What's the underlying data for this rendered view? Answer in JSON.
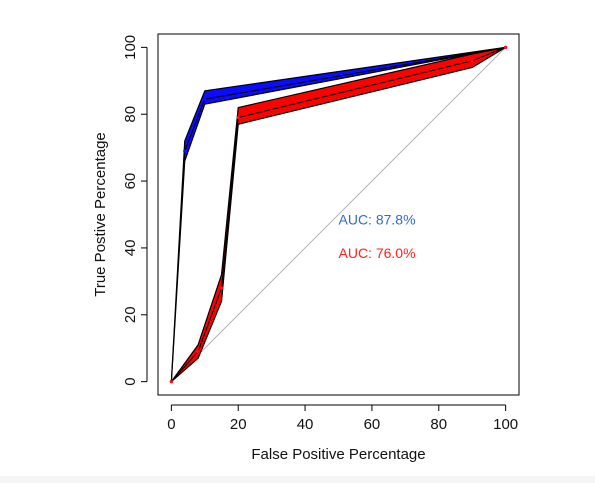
{
  "chart_data": {
    "type": "line",
    "title": "",
    "xlabel": "False Positive Percentage",
    "ylabel": "True Postive Percentage",
    "xlim": [
      -4,
      104
    ],
    "ylim": [
      -4,
      104
    ],
    "x_ticks": [
      0,
      20,
      40,
      60,
      80,
      100
    ],
    "y_ticks": [
      0,
      20,
      40,
      60,
      80,
      100
    ],
    "grid": false,
    "reference_line": {
      "from": [
        0,
        0
      ],
      "to": [
        100,
        100
      ],
      "color": "#b3b3b3"
    },
    "series": [
      {
        "color": "#1010ff",
        "fill_color": "#0b0bff",
        "points": [
          {
            "x": 0,
            "y": 0,
            "lower": 0,
            "upper": 0
          },
          {
            "x": 4,
            "y": 69,
            "lower": 66,
            "upper": 72
          },
          {
            "x": 10,
            "y": 84.5,
            "lower": 83,
            "upper": 87
          },
          {
            "x": 100,
            "y": 100,
            "lower": 100,
            "upper": 100
          }
        ]
      },
      {
        "color": "#ff1010",
        "fill_color": "#ff0000",
        "points": [
          {
            "x": 0,
            "y": 0,
            "lower": 0,
            "upper": 0
          },
          {
            "x": 8,
            "y": 9,
            "lower": 7,
            "upper": 11
          },
          {
            "x": 15,
            "y": 28,
            "lower": 24,
            "upper": 32
          },
          {
            "x": 20,
            "y": 79,
            "lower": 77,
            "upper": 82
          },
          {
            "x": 90,
            "y": 96,
            "lower": 94,
            "upper": 98
          },
          {
            "x": 100,
            "y": 100,
            "lower": 100,
            "upper": 100
          }
        ]
      }
    ],
    "annotations": [
      {
        "text": "AUC: 87.8%",
        "x": 50,
        "y": 47,
        "color": "#2f6fbf"
      },
      {
        "text": "AUC: 76.0%",
        "x": 50,
        "y": 37,
        "color": "#ff2020"
      }
    ]
  }
}
